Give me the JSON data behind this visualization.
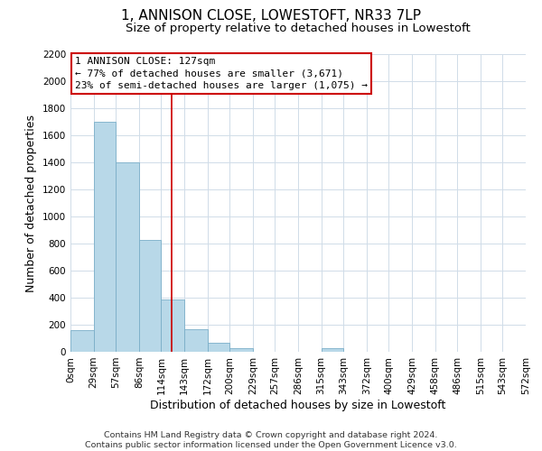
{
  "title": "1, ANNISON CLOSE, LOWESTOFT, NR33 7LP",
  "subtitle": "Size of property relative to detached houses in Lowestoft",
  "xlabel": "Distribution of detached houses by size in Lowestoft",
  "ylabel": "Number of detached properties",
  "bar_color": "#b8d8e8",
  "bar_edge_color": "#7aaec8",
  "background_color": "#ffffff",
  "grid_color": "#d0dce8",
  "annotation_box_edge": "#cc0000",
  "annotation_line_color": "#cc0000",
  "property_line_x": 127,
  "annotation_text_line1": "1 ANNISON CLOSE: 127sqm",
  "annotation_text_line2": "← 77% of detached houses are smaller (3,671)",
  "annotation_text_line3": "23% of semi-detached houses are larger (1,075) →",
  "footer_line1": "Contains HM Land Registry data © Crown copyright and database right 2024.",
  "footer_line2": "Contains public sector information licensed under the Open Government Licence v3.0.",
  "bin_edges": [
    0,
    29,
    57,
    86,
    114,
    143,
    172,
    200,
    229,
    257,
    286,
    315,
    343,
    372,
    400,
    429,
    458,
    486,
    515,
    543,
    572
  ],
  "bin_counts": [
    160,
    1700,
    1400,
    830,
    390,
    165,
    65,
    30,
    0,
    0,
    0,
    25,
    0,
    0,
    0,
    0,
    0,
    0,
    0,
    0
  ],
  "ylim": [
    0,
    2200
  ],
  "yticks": [
    0,
    200,
    400,
    600,
    800,
    1000,
    1200,
    1400,
    1600,
    1800,
    2000,
    2200
  ],
  "title_fontsize": 11,
  "subtitle_fontsize": 9.5,
  "axis_label_fontsize": 9,
  "tick_fontsize": 7.5,
  "footer_fontsize": 6.8,
  "annotation_fontsize": 8.0
}
